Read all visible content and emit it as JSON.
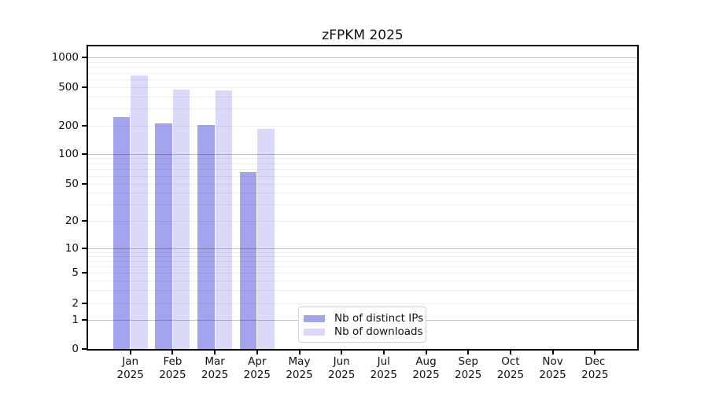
{
  "chart_data": {
    "type": "bar",
    "title": "zFPKM 2025",
    "categories": [
      "Jan 2025",
      "Feb 2025",
      "Mar 2025",
      "Apr 2025",
      "May 2025",
      "Jun 2025",
      "Jul 2025",
      "Aug 2025",
      "Sep 2025",
      "Oct 2025",
      "Nov 2025",
      "Dec 2025"
    ],
    "series": [
      {
        "name": "Nb of distinct IPs",
        "color": "#a4a4ee",
        "values": [
          245,
          210,
          205,
          66,
          null,
          null,
          null,
          null,
          null,
          null,
          null,
          null
        ]
      },
      {
        "name": "Nb of downloads",
        "color": "#dadaf8",
        "values": [
          660,
          470,
          468,
          185,
          null,
          null,
          null,
          null,
          null,
          null,
          null,
          null
        ]
      }
    ],
    "xlabel": "",
    "ylabel": "",
    "y_scale": "symlog",
    "y_ticks": [
      0,
      1,
      2,
      5,
      10,
      20,
      50,
      100,
      200,
      500,
      1000
    ],
    "y_tick_labels": [
      "0",
      "1",
      "2",
      "5",
      "10",
      "20",
      "50",
      "100",
      "200",
      "500",
      "1000"
    ],
    "ylim": [
      0,
      1280
    ],
    "grid": "horizontal major lines at powers of 10, faint minor lines at 2-9 per decade",
    "legend_position": "lower center inside plot",
    "colors": {
      "major_grid": "#c2c2c2",
      "minor_grid": "#ededed",
      "axis": "#000000",
      "text": "#111111"
    }
  }
}
